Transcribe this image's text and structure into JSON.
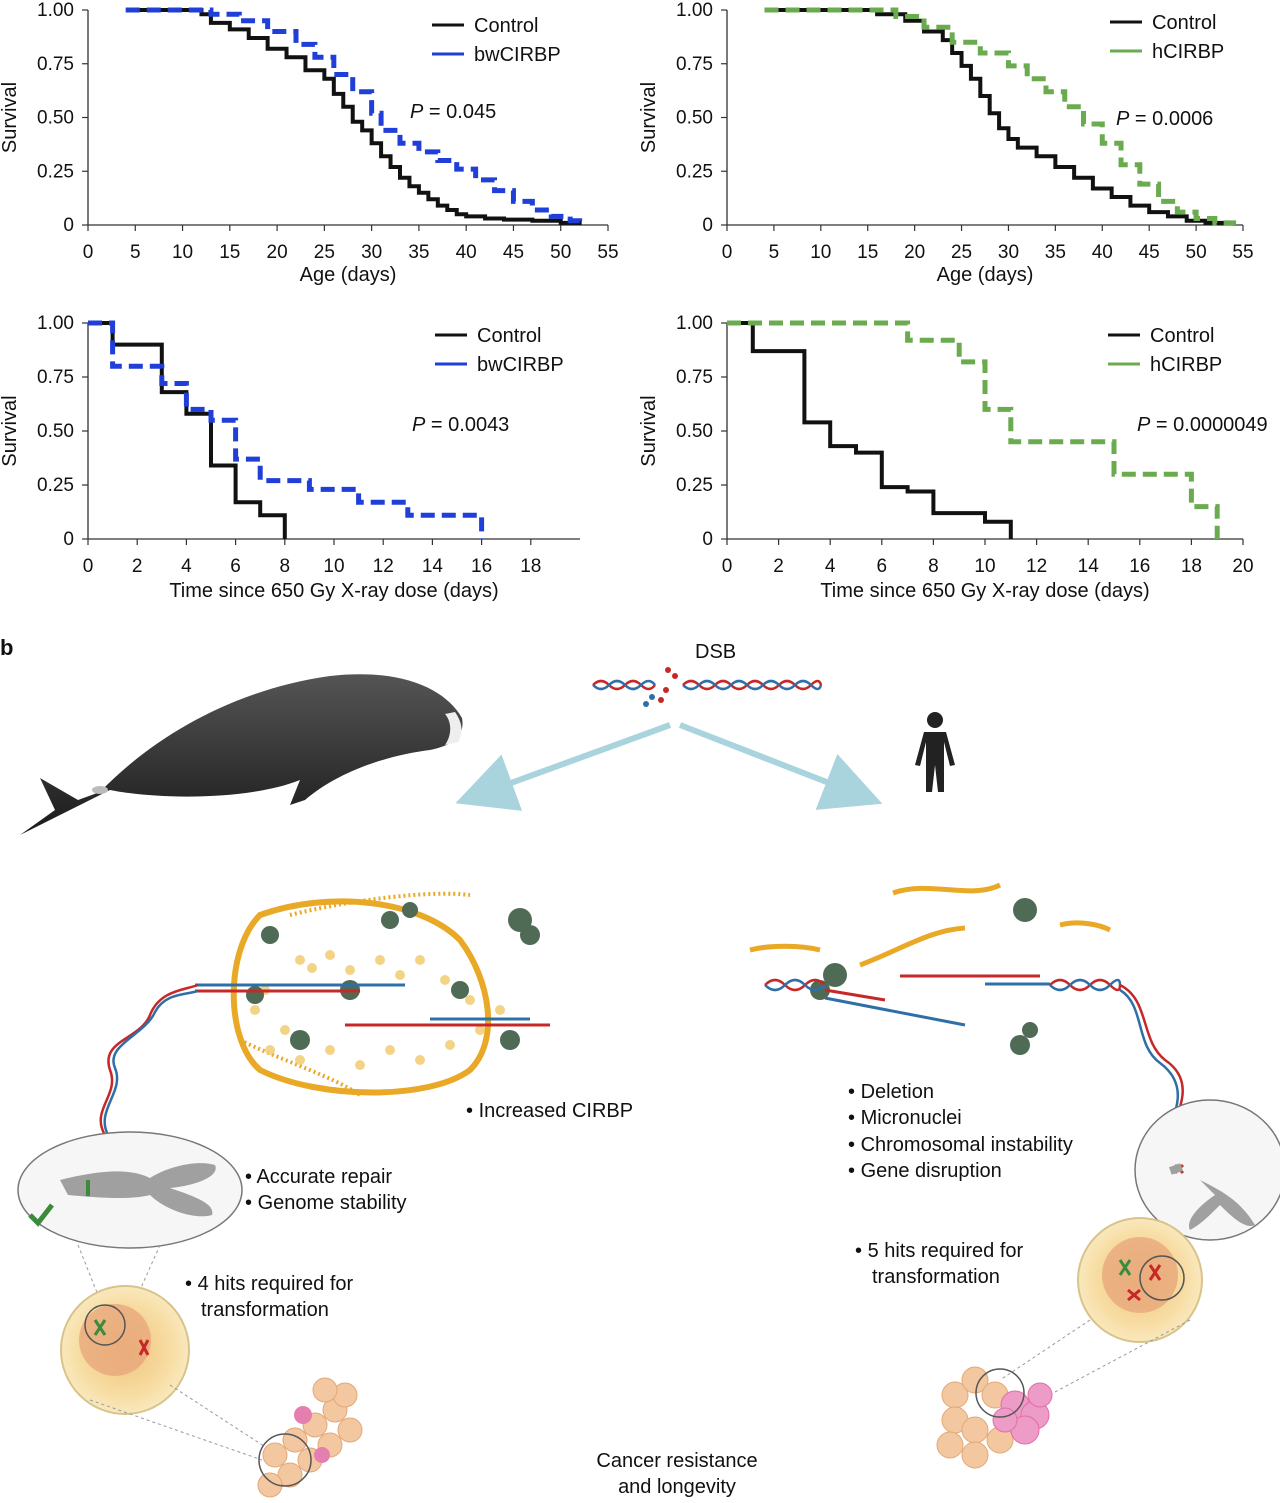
{
  "panel_label": "b",
  "chart_data": [
    {
      "type": "line",
      "ylabel": "Survival",
      "xlabel": "Age (days)",
      "xlim": [
        0,
        55
      ],
      "ylim": [
        0,
        1
      ],
      "xticks": [
        "0",
        "5",
        "10",
        "15",
        "20",
        "25",
        "30",
        "35",
        "40",
        "45",
        "50",
        "55"
      ],
      "yticks": [
        "0",
        "0.25",
        "0.50",
        "0.75",
        "1.00"
      ],
      "p_value": "P = 0.045",
      "legend_position": "top-right",
      "series": [
        {
          "name": "Control",
          "color": "#111111",
          "dash": "solid",
          "x": [
            4,
            12,
            13,
            15,
            17,
            19,
            21,
            23,
            25,
            26,
            27,
            28,
            29,
            30,
            31,
            32,
            33,
            34,
            35,
            36,
            37,
            38,
            39,
            40,
            42,
            44,
            47,
            50,
            52
          ],
          "y": [
            1.0,
            0.98,
            0.94,
            0.91,
            0.87,
            0.82,
            0.78,
            0.72,
            0.68,
            0.61,
            0.55,
            0.48,
            0.44,
            0.38,
            0.32,
            0.27,
            0.22,
            0.18,
            0.15,
            0.12,
            0.09,
            0.07,
            0.05,
            0.04,
            0.03,
            0.025,
            0.02,
            0.01,
            0.0
          ]
        },
        {
          "name": "bwCIRBP",
          "color": "#1f3fd8",
          "dash": "dashed",
          "x": [
            4,
            13,
            16,
            19,
            22,
            24,
            26,
            28,
            30,
            31,
            33,
            35,
            37,
            39,
            41,
            43,
            45,
            47,
            49,
            51,
            52
          ],
          "y": [
            1.0,
            0.98,
            0.95,
            0.9,
            0.84,
            0.78,
            0.7,
            0.62,
            0.52,
            0.44,
            0.38,
            0.34,
            0.3,
            0.26,
            0.21,
            0.16,
            0.11,
            0.07,
            0.04,
            0.02,
            0.0
          ]
        }
      ]
    },
    {
      "type": "line",
      "ylabel": "Survival",
      "xlabel": "Age (days)",
      "xlim": [
        0,
        55
      ],
      "ylim": [
        0,
        1
      ],
      "xticks": [
        "0",
        "5",
        "10",
        "15",
        "20",
        "25",
        "30",
        "35",
        "40",
        "45",
        "50",
        "55"
      ],
      "yticks": [
        "0",
        "0.25",
        "0.50",
        "0.75",
        "1.00"
      ],
      "p_value": "P = 0.0006",
      "legend_position": "top-right",
      "series": [
        {
          "name": "Control",
          "color": "#111111",
          "dash": "solid",
          "x": [
            4,
            16,
            19,
            21,
            23,
            24,
            25,
            26,
            27,
            28,
            29,
            30,
            31,
            33,
            35,
            37,
            39,
            41,
            43,
            45,
            47,
            49,
            51,
            54
          ],
          "y": [
            1.0,
            0.98,
            0.95,
            0.9,
            0.86,
            0.8,
            0.74,
            0.68,
            0.6,
            0.52,
            0.45,
            0.4,
            0.36,
            0.32,
            0.27,
            0.22,
            0.17,
            0.13,
            0.09,
            0.06,
            0.04,
            0.02,
            0.01,
            0.0
          ]
        },
        {
          "name": "hCIRBP",
          "color": "#6bab4f",
          "dash": "dashed",
          "x": [
            4,
            18,
            21,
            24,
            27,
            30,
            32,
            34,
            36,
            38,
            40,
            42,
            44,
            46,
            48,
            50,
            52,
            54
          ],
          "y": [
            1.0,
            0.97,
            0.92,
            0.85,
            0.8,
            0.74,
            0.68,
            0.62,
            0.55,
            0.47,
            0.38,
            0.28,
            0.19,
            0.11,
            0.06,
            0.03,
            0.01,
            0.0
          ]
        }
      ]
    },
    {
      "type": "line",
      "ylabel": "Survival",
      "xlabel": "Time since 650 Gy X-ray dose (days)",
      "xlim": [
        0,
        20
      ],
      "ylim": [
        0,
        1
      ],
      "xticks": [
        "0",
        "2",
        "4",
        "6",
        "8",
        "10",
        "12",
        "14",
        "16",
        "18"
      ],
      "yticks": [
        "0",
        "0.25",
        "0.50",
        "0.75",
        "1.00"
      ],
      "p_value": "P = 0.0043",
      "legend_position": "top-right",
      "series": [
        {
          "name": "Control",
          "color": "#111111",
          "dash": "solid",
          "x": [
            0,
            1,
            3,
            4,
            5,
            6,
            7,
            8
          ],
          "y": [
            1.0,
            0.9,
            0.68,
            0.58,
            0.34,
            0.17,
            0.11,
            0.0
          ]
        },
        {
          "name": "bwCIRBP",
          "color": "#1f3fd8",
          "dash": "dashed",
          "x": [
            0,
            1,
            3,
            4,
            5,
            6,
            7,
            9,
            11,
            13,
            16
          ],
          "y": [
            1.0,
            0.8,
            0.72,
            0.6,
            0.55,
            0.37,
            0.27,
            0.23,
            0.17,
            0.11,
            0.0
          ]
        }
      ]
    },
    {
      "type": "line",
      "ylabel": "Survival",
      "xlabel": "Time since 650 Gy X-ray dose (days)",
      "xlim": [
        0,
        20
      ],
      "ylim": [
        0,
        1
      ],
      "xticks": [
        "0",
        "2",
        "4",
        "6",
        "8",
        "10",
        "12",
        "14",
        "16",
        "18",
        "20"
      ],
      "yticks": [
        "0",
        "0.25",
        "0.50",
        "0.75",
        "1.00"
      ],
      "p_value": "P = 0.0000049",
      "legend_position": "top-right",
      "series": [
        {
          "name": "Control",
          "color": "#111111",
          "dash": "solid",
          "x": [
            0,
            1,
            3,
            4,
            5,
            6,
            7,
            8,
            10,
            11
          ],
          "y": [
            1.0,
            0.87,
            0.54,
            0.43,
            0.4,
            0.24,
            0.22,
            0.12,
            0.08,
            0.0
          ]
        },
        {
          "name": "hCIRBP",
          "color": "#6bab4f",
          "dash": "dashed",
          "x": [
            0,
            7,
            9,
            10,
            11,
            15,
            16,
            18,
            19
          ],
          "y": [
            1.0,
            0.92,
            0.82,
            0.6,
            0.45,
            0.3,
            0.3,
            0.15,
            0.0
          ]
        }
      ]
    }
  ],
  "diagram": {
    "dsb_label": "DSB",
    "bullets_increased": [
      "Increased CIRBP"
    ],
    "bullets_whale_repair": [
      "Accurate repair",
      "Genome stability"
    ],
    "bullets_whale_hits": [
      "4 hits required for",
      "transformation"
    ],
    "bullets_human_damage": [
      "Deletion",
      "Micronuclei",
      "Chromosomal instability",
      "Gene disruption"
    ],
    "bullets_human_hits": [
      "5 hits required for",
      "transformation"
    ],
    "conclusion": [
      "Cancer resistance",
      "and longevity"
    ],
    "colors": {
      "orange": "#e9a825",
      "dna_red": "#c62828",
      "dna_blue": "#2f6fa8",
      "protein": "#4f6b55",
      "check": "#3a8b3c",
      "cross": "#c0392b"
    }
  }
}
